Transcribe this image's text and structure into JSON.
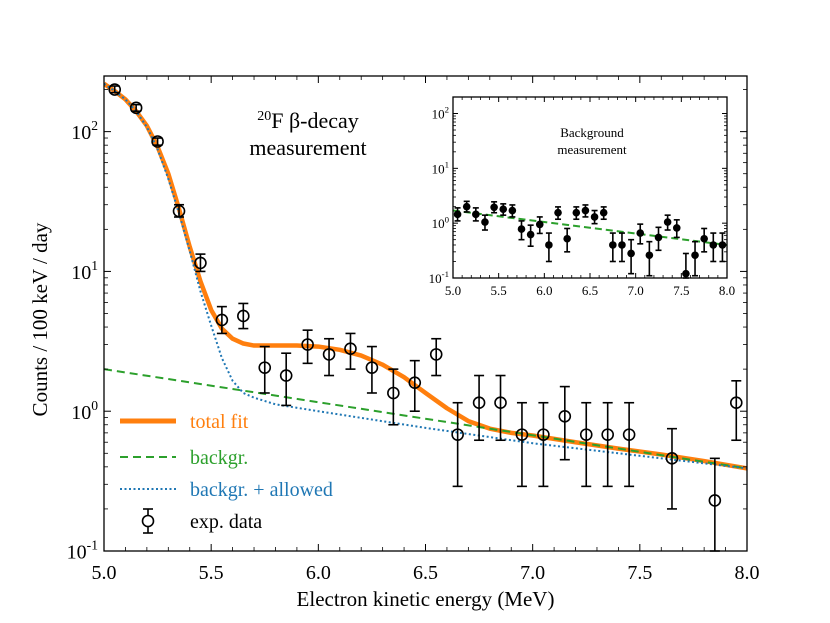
{
  "chart_data": [
    {
      "type": "scatter",
      "title": "",
      "annotation": {
        "line1_sup": "20",
        "line1_main": "F β-decay",
        "line2": "measurement"
      },
      "xlabel": "Electron kinetic energy (MeV)",
      "ylabel": "Counts / 100 keV / day",
      "yscale": "log",
      "xlim": [
        5.0,
        8.0
      ],
      "ylim": [
        0.1,
        250
      ],
      "xticks": [
        5.0,
        5.5,
        6.0,
        6.5,
        7.0,
        7.5,
        8.0
      ],
      "xtick_labels": [
        "5.0",
        "5.5",
        "6.0",
        "6.5",
        "7.0",
        "7.5",
        "8.0"
      ],
      "yticks": [
        {
          "value": 0.1,
          "base": "10",
          "exp": "-1"
        },
        {
          "value": 1,
          "base": "10",
          "exp": "0"
        },
        {
          "value": 10,
          "base": "10",
          "exp": "1"
        },
        {
          "value": 100,
          "base": "10",
          "exp": "2"
        }
      ],
      "legend_position": "lower-left",
      "legend": [
        {
          "label": "total fit",
          "color": "#ff7f0e",
          "style": "solid",
          "key": "total_fit"
        },
        {
          "label": "backgr.",
          "color": "#2ca02c",
          "style": "dashed",
          "key": "background"
        },
        {
          "label": "backgr. + allowed",
          "color": "#1f77b4",
          "style": "dotted",
          "key": "bg_allowed"
        },
        {
          "label": "exp. data",
          "color": "#000000",
          "style": "marker",
          "key": "data"
        }
      ],
      "series": {
        "data": [
          {
            "x": 5.05,
            "y": 200,
            "lo": 190,
            "hi": 212
          },
          {
            "x": 5.15,
            "y": 148,
            "lo": 140,
            "hi": 156
          },
          {
            "x": 5.25,
            "y": 85,
            "lo": 80,
            "hi": 90
          },
          {
            "x": 5.35,
            "y": 27,
            "lo": 24.5,
            "hi": 30
          },
          {
            "x": 5.45,
            "y": 11.5,
            "lo": 10,
            "hi": 13.3
          },
          {
            "x": 5.55,
            "y": 4.5,
            "lo": 3.6,
            "hi": 5.6
          },
          {
            "x": 5.65,
            "y": 4.8,
            "lo": 3.9,
            "hi": 5.9
          },
          {
            "x": 5.75,
            "y": 2.05,
            "lo": 1.35,
            "hi": 2.9
          },
          {
            "x": 5.85,
            "y": 1.8,
            "lo": 1.1,
            "hi": 2.6
          },
          {
            "x": 5.95,
            "y": 3.0,
            "lo": 2.2,
            "hi": 3.8
          },
          {
            "x": 6.05,
            "y": 2.55,
            "lo": 1.8,
            "hi": 3.3
          },
          {
            "x": 6.15,
            "y": 2.8,
            "lo": 2.0,
            "hi": 3.6
          },
          {
            "x": 6.25,
            "y": 2.05,
            "lo": 1.35,
            "hi": 2.9
          },
          {
            "x": 6.35,
            "y": 1.35,
            "lo": 0.8,
            "hi": 2.0
          },
          {
            "x": 6.45,
            "y": 1.6,
            "lo": 1.0,
            "hi": 2.3
          },
          {
            "x": 6.55,
            "y": 2.55,
            "lo": 1.8,
            "hi": 3.3
          },
          {
            "x": 6.65,
            "y": 0.68,
            "lo": 0.29,
            "hi": 1.15
          },
          {
            "x": 6.75,
            "y": 1.15,
            "lo": 0.62,
            "hi": 1.8
          },
          {
            "x": 6.85,
            "y": 1.15,
            "lo": 0.62,
            "hi": 1.8
          },
          {
            "x": 6.95,
            "y": 0.68,
            "lo": 0.29,
            "hi": 1.15
          },
          {
            "x": 7.05,
            "y": 0.68,
            "lo": 0.29,
            "hi": 1.15
          },
          {
            "x": 7.15,
            "y": 0.92,
            "lo": 0.45,
            "hi": 1.5
          },
          {
            "x": 7.25,
            "y": 0.68,
            "lo": 0.29,
            "hi": 1.15
          },
          {
            "x": 7.35,
            "y": 0.68,
            "lo": 0.29,
            "hi": 1.15
          },
          {
            "x": 7.45,
            "y": 0.68,
            "lo": 0.29,
            "hi": 1.15
          },
          {
            "x": 7.65,
            "y": 0.46,
            "lo": 0.2,
            "hi": 0.75
          },
          {
            "x": 7.85,
            "y": 0.23,
            "lo": 0.1,
            "hi": 0.46
          },
          {
            "x": 7.95,
            "y": 1.15,
            "lo": 0.62,
            "hi": 1.65
          }
        ],
        "total_fit": {
          "x": [
            5.0,
            5.05,
            5.1,
            5.15,
            5.2,
            5.25,
            5.3,
            5.35,
            5.4,
            5.45,
            5.5,
            5.55,
            5.6,
            5.65,
            5.7,
            5.75,
            5.8,
            5.9,
            6.0,
            6.1,
            6.2,
            6.3,
            6.4,
            6.5,
            6.6,
            6.7,
            6.8,
            6.9,
            7.0,
            7.2,
            7.4,
            7.6,
            7.8,
            8.0
          ],
          "y": [
            220,
            195,
            170,
            140,
            110,
            78,
            50,
            28,
            15,
            8.5,
            5.3,
            3.9,
            3.3,
            3.05,
            2.95,
            2.95,
            2.95,
            2.95,
            2.9,
            2.75,
            2.5,
            2.15,
            1.75,
            1.35,
            1.05,
            0.85,
            0.75,
            0.7,
            0.67,
            0.6,
            0.54,
            0.49,
            0.44,
            0.39
          ]
        },
        "background": {
          "x": [
            5.0,
            8.0
          ],
          "y": [
            2.0,
            0.39
          ]
        },
        "bg_allowed": {
          "x": [
            5.0,
            5.05,
            5.1,
            5.15,
            5.2,
            5.25,
            5.3,
            5.35,
            5.4,
            5.45,
            5.5,
            5.55,
            5.6,
            5.65,
            5.7,
            5.8,
            6.0,
            6.5,
            7.0,
            8.0
          ],
          "y": [
            220,
            195,
            170,
            140,
            108,
            75,
            46,
            26,
            14,
            7.2,
            4.1,
            2.4,
            1.65,
            1.35,
            1.25,
            1.12,
            1.0,
            0.76,
            0.59,
            0.39
          ]
        }
      }
    },
    {
      "type": "scatter",
      "title": "Background measurement",
      "title_lines": [
        "Background",
        "measurement"
      ],
      "yscale": "log",
      "xlim": [
        5.0,
        8.0
      ],
      "ylim": [
        0.1,
        200
      ],
      "xticks": [
        5.0,
        5.5,
        6.0,
        6.5,
        7.0,
        7.5,
        8.0
      ],
      "xtick_labels": [
        "5.0",
        "5.5",
        "6.0",
        "6.5",
        "7.0",
        "7.5",
        "8.0"
      ],
      "yticks": [
        {
          "value": 0.1,
          "base": "10",
          "exp": "-1"
        },
        {
          "value": 1,
          "base": "10",
          "exp": "0"
        },
        {
          "value": 10,
          "base": "10",
          "exp": "1"
        },
        {
          "value": 100,
          "base": "10",
          "exp": "2"
        }
      ],
      "series": {
        "data": [
          {
            "x": 5.05,
            "y": 1.45,
            "lo": 1.1,
            "hi": 1.9
          },
          {
            "x": 5.15,
            "y": 2.0,
            "lo": 1.6,
            "hi": 2.5
          },
          {
            "x": 5.25,
            "y": 1.45,
            "lo": 1.1,
            "hi": 1.9
          },
          {
            "x": 5.35,
            "y": 1.05,
            "lo": 0.75,
            "hi": 1.4
          },
          {
            "x": 5.45,
            "y": 1.95,
            "lo": 1.55,
            "hi": 2.45
          },
          {
            "x": 5.55,
            "y": 1.8,
            "lo": 1.4,
            "hi": 2.25
          },
          {
            "x": 5.65,
            "y": 1.7,
            "lo": 1.3,
            "hi": 2.15
          },
          {
            "x": 5.75,
            "y": 0.78,
            "lo": 0.5,
            "hi": 1.1
          },
          {
            "x": 5.85,
            "y": 0.62,
            "lo": 0.38,
            "hi": 0.92
          },
          {
            "x": 5.95,
            "y": 0.95,
            "lo": 0.65,
            "hi": 1.3
          },
          {
            "x": 6.05,
            "y": 0.4,
            "lo": 0.2,
            "hi": 0.66
          },
          {
            "x": 6.15,
            "y": 1.55,
            "lo": 1.18,
            "hi": 1.98
          },
          {
            "x": 6.25,
            "y": 0.52,
            "lo": 0.3,
            "hi": 0.8
          },
          {
            "x": 6.35,
            "y": 1.55,
            "lo": 1.18,
            "hi": 1.98
          },
          {
            "x": 6.45,
            "y": 1.7,
            "lo": 1.3,
            "hi": 2.15
          },
          {
            "x": 6.55,
            "y": 1.3,
            "lo": 0.98,
            "hi": 1.7
          },
          {
            "x": 6.65,
            "y": 1.55,
            "lo": 1.18,
            "hi": 1.98
          },
          {
            "x": 6.75,
            "y": 0.4,
            "lo": 0.2,
            "hi": 0.66
          },
          {
            "x": 6.85,
            "y": 0.4,
            "lo": 0.2,
            "hi": 0.66
          },
          {
            "x": 6.95,
            "y": 0.28,
            "lo": 0.12,
            "hi": 0.5
          },
          {
            "x": 7.05,
            "y": 0.66,
            "lo": 0.42,
            "hi": 0.96
          },
          {
            "x": 7.15,
            "y": 0.26,
            "lo": 0.11,
            "hi": 0.46
          },
          {
            "x": 7.25,
            "y": 0.55,
            "lo": 0.32,
            "hi": 0.84
          },
          {
            "x": 7.35,
            "y": 1.05,
            "lo": 0.75,
            "hi": 1.4
          },
          {
            "x": 7.45,
            "y": 0.82,
            "lo": 0.55,
            "hi": 1.15
          },
          {
            "x": 7.55,
            "y": 0.12,
            "lo": 0.1,
            "hi": 0.28
          },
          {
            "x": 7.65,
            "y": 0.26,
            "lo": 0.11,
            "hi": 0.46
          },
          {
            "x": 7.75,
            "y": 0.52,
            "lo": 0.3,
            "hi": 0.8
          },
          {
            "x": 7.85,
            "y": 0.4,
            "lo": 0.2,
            "hi": 0.66
          },
          {
            "x": 7.95,
            "y": 0.4,
            "lo": 0.2,
            "hi": 0.66
          }
        ],
        "background": {
          "x": [
            5.0,
            8.0
          ],
          "y": [
            1.7,
            0.4
          ]
        }
      },
      "colors": {
        "fit": "#2ca02c",
        "points": "#000000"
      }
    }
  ]
}
